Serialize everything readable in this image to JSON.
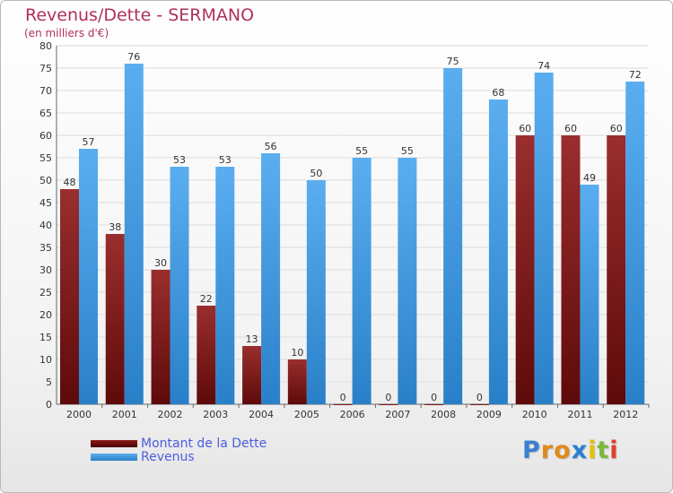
{
  "title": "Revenus/Dette - SERMANO",
  "subtitle": "(en milliers d'€)",
  "chart_data": {
    "type": "bar",
    "categories": [
      "2000",
      "2001",
      "2002",
      "2003",
      "2004",
      "2005",
      "2006",
      "2007",
      "2008",
      "2009",
      "2010",
      "2011",
      "2012"
    ],
    "series": [
      {
        "name": "Montant de la Dette",
        "values": [
          48,
          38,
          30,
          22,
          13,
          10,
          0,
          0,
          0,
          0,
          60,
          60,
          60
        ],
        "color": "#8b1a1a"
      },
      {
        "name": "Revenus",
        "values": [
          57,
          76,
          53,
          53,
          56,
          50,
          55,
          55,
          75,
          68,
          74,
          49,
          72
        ],
        "color": "#3d93db"
      }
    ],
    "ylim": [
      0,
      80
    ],
    "yticks": [
      0,
      5,
      10,
      15,
      20,
      25,
      30,
      35,
      40,
      45,
      50,
      55,
      60,
      65,
      70,
      75,
      80
    ],
    "grid": true,
    "legend_position": "bottom-left"
  },
  "logo": {
    "letters": [
      "P",
      "r",
      "o",
      "x",
      "i",
      "t",
      "i"
    ],
    "colors": [
      "#3a7fd0",
      "#e08a1a",
      "#e08a1a",
      "#2a7fd0",
      "#e5c200",
      "#7ab83a",
      "#e0402a"
    ]
  }
}
